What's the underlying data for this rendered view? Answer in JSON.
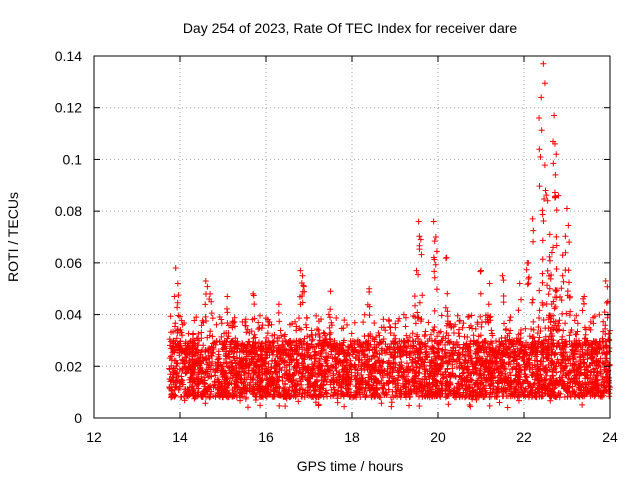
{
  "chart_data": {
    "type": "scatter",
    "title": "Day 254 of 2023, Rate Of TEC Index for receiver dare",
    "xlabel": "GPS time / hours",
    "ylabel": "ROTI / TECUs",
    "xlim": [
      12,
      24
    ],
    "ylim": [
      0,
      0.14
    ],
    "xticks": [
      12,
      14,
      16,
      18,
      20,
      22,
      24
    ],
    "yticks": [
      0,
      0.02,
      0.04,
      0.06,
      0.08,
      0.1,
      0.12,
      0.14
    ],
    "xtick_labels": [
      "12",
      "14",
      "16",
      "18",
      "20",
      "22",
      "24"
    ],
    "ytick_labels": [
      "0",
      "0.02",
      "0.04",
      "0.06",
      "0.08",
      "0.1",
      "0.12",
      "0.14"
    ],
    "grid": true,
    "marker": "+",
    "marker_color": "#ff0000",
    "x_data_start": 13.75,
    "x_data_end": 24.0,
    "baseline_range": [
      0.008,
      0.03
    ],
    "features": [
      {
        "x": 13.9,
        "y": 0.058
      },
      {
        "x": 13.95,
        "y": 0.052
      },
      {
        "x": 14.6,
        "y": 0.053
      },
      {
        "x": 14.7,
        "y": 0.048
      },
      {
        "x": 15.1,
        "y": 0.047
      },
      {
        "x": 15.7,
        "y": 0.048
      },
      {
        "x": 16.3,
        "y": 0.044
      },
      {
        "x": 16.8,
        "y": 0.057
      },
      {
        "x": 16.85,
        "y": 0.055
      },
      {
        "x": 17.5,
        "y": 0.049
      },
      {
        "x": 18.4,
        "y": 0.05
      },
      {
        "x": 19.5,
        "y": 0.057
      },
      {
        "x": 19.55,
        "y": 0.076
      },
      {
        "x": 19.6,
        "y": 0.069
      },
      {
        "x": 19.9,
        "y": 0.076
      },
      {
        "x": 19.95,
        "y": 0.07
      },
      {
        "x": 20.2,
        "y": 0.062
      },
      {
        "x": 21.0,
        "y": 0.057
      },
      {
        "x": 21.2,
        "y": 0.052
      },
      {
        "x": 21.5,
        "y": 0.055
      },
      {
        "x": 21.9,
        "y": 0.052
      },
      {
        "x": 22.1,
        "y": 0.06
      },
      {
        "x": 22.2,
        "y": 0.077
      },
      {
        "x": 22.35,
        "y": 0.116
      },
      {
        "x": 22.4,
        "y": 0.124
      },
      {
        "x": 22.45,
        "y": 0.137
      },
      {
        "x": 22.5,
        "y": 0.088
      },
      {
        "x": 22.55,
        "y": 0.084
      },
      {
        "x": 22.6,
        "y": 0.071
      },
      {
        "x": 22.65,
        "y": 0.064
      },
      {
        "x": 22.7,
        "y": 0.117
      },
      {
        "x": 22.72,
        "y": 0.106
      },
      {
        "x": 22.75,
        "y": 0.102
      },
      {
        "x": 22.8,
        "y": 0.086
      },
      {
        "x": 22.9,
        "y": 0.063
      },
      {
        "x": 23.0,
        "y": 0.081
      },
      {
        "x": 23.05,
        "y": 0.068
      },
      {
        "x": 23.4,
        "y": 0.047
      },
      {
        "x": 23.9,
        "y": 0.053
      },
      {
        "x": 23.95,
        "y": 0.045
      }
    ]
  }
}
